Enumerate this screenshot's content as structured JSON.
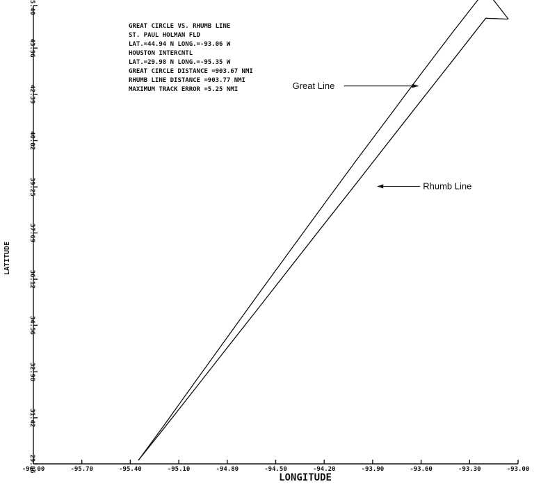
{
  "chart_data": {
    "type": "line",
    "title": "",
    "xlabel": "LONGITUDE",
    "ylabel": "LATITUDE",
    "xlim": [
      -96.0,
      -93.0
    ],
    "ylim": [
      29.86,
      45.4
    ],
    "grid": false,
    "x_ticks": [
      -96.0,
      -95.7,
      -95.4,
      -95.1,
      -94.8,
      -94.5,
      -94.2,
      -93.9,
      -93.6,
      -93.3,
      -93.0
    ],
    "x_tick_labels": [
      "-96.00",
      "-95.70",
      "-95.40",
      "-95.10",
      "-94.80",
      "-94.50",
      "-94.20",
      "-93.90",
      "-93.60",
      "-93.30",
      "-93.00"
    ],
    "y_ticks": [
      29.86,
      31.42,
      32.98,
      34.56,
      36.12,
      37.69,
      39.25,
      40.82,
      42.39,
      43.96,
      45.4
    ],
    "y_tick_labels": [
      "29.86",
      "31.42",
      "32.98",
      "34.56",
      "36.12",
      "37.69",
      "39.25",
      "40.82",
      "42.39",
      "43.96",
      "45.40"
    ],
    "info_lines": [
      "GREAT CIRCLE VS. RHUMB LINE",
      "ST. PAUL HOLMAN FLD",
      "LAT.=44.94 N  LONG.=-93.06 W",
      "HOUSTON INTERCNTL",
      "LAT.=29.98 N  LONG.=-95.35 W",
      "GREAT CIRCLE DISTANCE =903.67 NMI",
      "RHUMB LINE DISTANCE =903.77 NMI",
      "MAXIMUM TRACK ERROR =5.25 NMI"
    ],
    "annotations": [
      {
        "text": "Great Line",
        "series": "great",
        "x": -93.6,
        "y": 42.58
      },
      {
        "text": "Rhumb Line",
        "series": "rhumb",
        "x": -93.89,
        "y": 39.27
      }
    ],
    "series": [
      {
        "key": "great",
        "x": [
          -95.35,
          -95.2,
          -95.0,
          -94.8,
          -94.6,
          -94.4,
          -94.2,
          -94.0,
          -93.8,
          -93.6,
          -93.4,
          -93.2,
          -93.06
        ],
        "y": [
          29.98,
          31.1,
          32.63,
          34.15,
          35.67,
          37.17,
          38.67,
          40.16,
          41.62,
          43.09,
          44.53,
          45.93,
          44.94
        ]
      },
      {
        "key": "rhumb",
        "x": [
          -95.35,
          -95.2,
          -95.0,
          -94.8,
          -94.6,
          -94.4,
          -94.2,
          -94.0,
          -93.8,
          -93.6,
          -93.4,
          -93.2,
          -93.06
        ],
        "y": [
          29.98,
          31.01,
          32.4,
          33.8,
          35.19,
          36.59,
          37.99,
          39.38,
          40.78,
          42.18,
          43.57,
          44.97,
          44.94
        ]
      }
    ]
  }
}
